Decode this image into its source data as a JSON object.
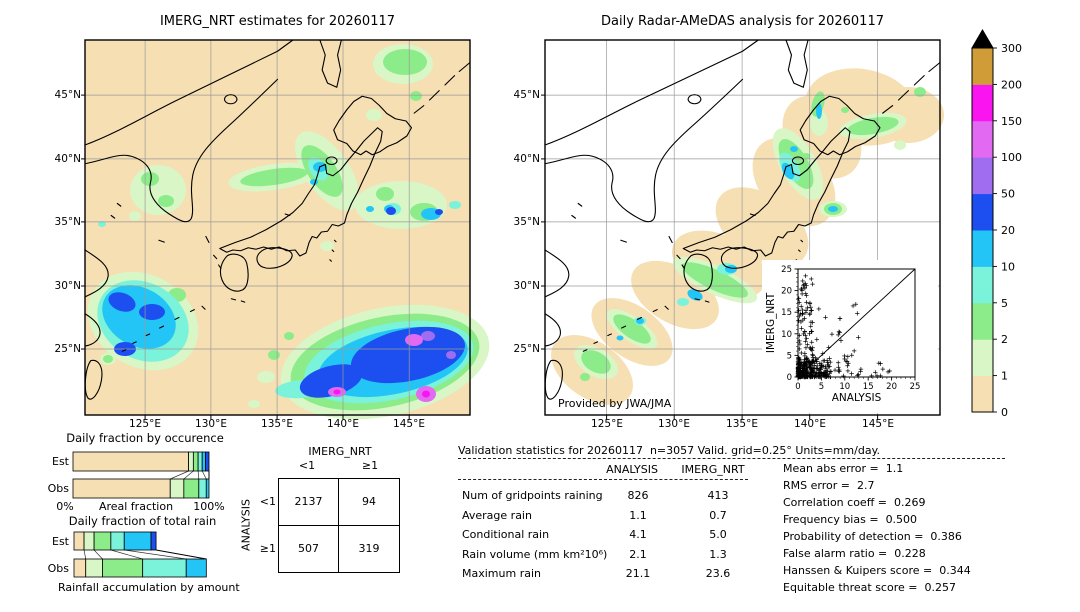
{
  "left_map": {
    "title": "IMERG_NRT estimates for 20260117",
    "lat_ticks": [
      "45°N",
      "40°N",
      "35°N",
      "30°N",
      "25°N"
    ],
    "lon_ticks": [
      "125°E",
      "130°E",
      "135°E",
      "140°E",
      "145°E"
    ]
  },
  "right_map": {
    "title": "Daily Radar-AMeDAS analysis for 20260117",
    "lat_ticks": [
      "45°N",
      "40°N",
      "35°N",
      "30°N",
      "25°N"
    ],
    "lon_ticks": [
      "125°E",
      "130°E",
      "135°E",
      "140°E",
      "145°E"
    ],
    "credit": "Provided by JWA/JMA"
  },
  "colorbar": {
    "ticks": [
      "0",
      "1",
      "2",
      "5",
      "10",
      "20",
      "50",
      "100",
      "150",
      "200",
      "300"
    ],
    "colors": [
      "#f6dfb3",
      "#d9f6c6",
      "#8cec8a",
      "#7bf3da",
      "#22c5f5",
      "#1d4ff0",
      "#a06cf0",
      "#e26af2",
      "#fa14f0",
      "#cf9c38"
    ],
    "overflow_color": "#000000"
  },
  "occurrence_chart": {
    "title": "Daily fraction by occurence",
    "x_left": "0%",
    "x_mid": "Areal fraction",
    "x_right": "100%",
    "rows": [
      {
        "label": "Est",
        "values": [
          85,
          3.5,
          3.5,
          3,
          2.5,
          2.5
        ],
        "colors": [
          0,
          1,
          2,
          3,
          4,
          5
        ]
      },
      {
        "label": "Obs",
        "values": [
          71.5,
          10,
          11,
          5.5,
          2
        ],
        "colors": [
          0,
          1,
          2,
          3,
          4
        ]
      }
    ]
  },
  "totalrain_chart": {
    "title": "Daily fraction of total rain",
    "xlabel": "Rainfall accumulation by amount",
    "rows": [
      {
        "label": "Est",
        "values": [
          7.5,
          7.5,
          12.5,
          10,
          20,
          3.75
        ],
        "colors": [
          0,
          1,
          2,
          3,
          4,
          5
        ]
      },
      {
        "label": "Obs",
        "values": [
          8.75,
          12.5,
          30,
          32.5,
          15
        ],
        "colors": [
          0,
          1,
          2,
          3,
          4
        ]
      }
    ]
  },
  "contingency": {
    "col_group": "IMERG_NRT",
    "row_group": "ANALYSIS",
    "col_labels": [
      "<1",
      "≥1"
    ],
    "row_labels": [
      "<1",
      "≥1"
    ],
    "values": [
      [
        "2137",
        "94"
      ],
      [
        "507",
        "319"
      ]
    ]
  },
  "stats": {
    "title": "Validation statistics for 20260117  n=3057 Valid. grid=0.25° Units=mm/day.",
    "col_headers": [
      "ANALYSIS",
      "IMERG_NRT"
    ],
    "rows": [
      {
        "label": "Num of gridpoints raining",
        "analysis": "826",
        "imerg": "413"
      },
      {
        "label": "Average rain",
        "analysis": "1.1",
        "imerg": "0.7"
      },
      {
        "label": "Conditional rain",
        "analysis": "4.1",
        "imerg": "5.0"
      },
      {
        "label": "Rain volume (mm km²10⁶)",
        "analysis": "2.1",
        "imerg": "1.3"
      },
      {
        "label": "Maximum rain",
        "analysis": "21.1",
        "imerg": "23.6"
      }
    ]
  },
  "scores": [
    {
      "label": "Mean abs error",
      "value": "1.1"
    },
    {
      "label": "RMS error",
      "value": "2.7"
    },
    {
      "label": "Correlation coeff",
      "value": "0.269"
    },
    {
      "label": "Frequency bias",
      "value": "0.500"
    },
    {
      "label": "Probability of detection",
      "value": "0.386"
    },
    {
      "label": "False alarm ratio",
      "value": "0.228"
    },
    {
      "label": "Hanssen & Kuipers score",
      "value": "0.344"
    },
    {
      "label": "Equitable threat score",
      "value": "0.257"
    }
  ],
  "inset": {
    "xlabel": "ANALYSIS",
    "ylabel": "IMERG_NRT",
    "x_ticks": [
      "0",
      "5",
      "10",
      "15",
      "20",
      "25"
    ],
    "y_ticks": [
      "0",
      "5",
      "10",
      "15",
      "20",
      "25"
    ],
    "xlim": [
      0,
      25
    ],
    "ylim": [
      0,
      25
    ],
    "clusters": [
      {
        "count": 260,
        "x": [
          0,
          7
        ],
        "y": [
          0,
          4.5
        ],
        "px": 2.3,
        "py": 2.3
      },
      {
        "count": 70,
        "x": [
          0.15,
          3.2
        ],
        "y": [
          1,
          24
        ],
        "px": 1.6,
        "py": 1.0
      },
      {
        "count": 55,
        "x": [
          1,
          21
        ],
        "y": [
          0.15,
          3.8
        ],
        "px": 1.5,
        "py": 1.4
      },
      {
        "count": 35,
        "x": [
          2.5,
          13
        ],
        "y": [
          3.5,
          18
        ],
        "px": 1.3,
        "py": 1.6
      }
    ]
  },
  "chart_data": [
    {
      "type": "heatmap",
      "title": "IMERG_NRT estimates for 20260117",
      "units": "mm/day",
      "x_ticks": [
        "125°E",
        "130°E",
        "135°E",
        "140°E",
        "145°E"
      ],
      "y_ticks": [
        "45°N",
        "40°N",
        "35°N",
        "30°N",
        "25°N"
      ],
      "scale_bins": [
        0,
        1,
        2,
        5,
        10,
        20,
        50,
        100,
        150,
        200,
        300
      ],
      "features": [
        "light rain NE Hokkaido",
        "rain band 10-50 along NW Tohoku coast near 139E/40N",
        "cells 20-50 east of Japan ~144-148E/37N",
        "system 20-50 in East China Sea ~121-124E/26-28N",
        "large storm 20-150 south of Japan 135-149E/21-27N with >100 cores"
      ]
    },
    {
      "type": "heatmap",
      "title": "Daily Radar-AMeDAS analysis for 20260117",
      "units": "mm/day",
      "x_ticks": [
        "125°E",
        "130°E",
        "135°E",
        "140°E",
        "145°E"
      ],
      "y_ticks": [
        "45°N",
        "40°N",
        "35°N",
        "30°N",
        "25°N"
      ],
      "credit": "Provided by JWA/JMA",
      "features": [
        "radar coverage swath 0-1 along archipelago",
        "rain 2-20 along Sea-of-Japan coast of Tohoku",
        "band 2-20 south of Shikoku",
        "cells 2-20 near Okinawa"
      ]
    },
    {
      "type": "bar",
      "stacked": true,
      "title": "Daily fraction by occurence",
      "xlabel": "Areal fraction",
      "xlim_pct": [
        0,
        100
      ],
      "categories": [
        "Est",
        "Obs"
      ],
      "bins": [
        "0-1",
        "1-2",
        "2-5",
        "5-10",
        "10-20",
        "20-50"
      ],
      "series": [
        {
          "name": "Est",
          "values_pct": [
            85,
            3.5,
            3.5,
            3,
            2.5,
            2.5
          ]
        },
        {
          "name": "Obs",
          "values_pct": [
            71.5,
            10,
            11,
            5.5,
            2,
            0
          ]
        }
      ]
    },
    {
      "type": "bar",
      "stacked": true,
      "title": "Daily fraction of total rain",
      "xlabel": "Rainfall accumulation by amount",
      "categories": [
        "Est",
        "Obs"
      ],
      "bins": [
        "0-1",
        "1-2",
        "2-5",
        "5-10",
        "10-20",
        "20-50"
      ],
      "note": "bar length scaled by rain volume; Est total 61% of Obs",
      "series": [
        {
          "name": "Est",
          "values_pct": [
            7.5,
            7.5,
            12.5,
            10,
            20,
            3.75
          ]
        },
        {
          "name": "Obs",
          "values_pct": [
            8.75,
            12.5,
            30,
            32.5,
            15,
            0
          ]
        }
      ]
    },
    {
      "type": "table",
      "title": "contingency counts (gridpoints)",
      "col_group": "IMERG_NRT",
      "row_group": "ANALYSIS",
      "cols": [
        "<1",
        "≥1"
      ],
      "rows": [
        "<1",
        "≥1"
      ],
      "values": [
        [
          2137,
          94
        ],
        [
          507,
          319
        ]
      ]
    },
    {
      "type": "scatter",
      "xlabel": "ANALYSIS",
      "ylabel": "IMERG_NRT",
      "xlim": [
        0,
        25
      ],
      "ylim": [
        0,
        25
      ],
      "marker": "+",
      "ref_line": "y=x",
      "distribution": "dense cluster near origin; column x<3 up to y≈24; spread y<4 out to x≈21"
    }
  ]
}
